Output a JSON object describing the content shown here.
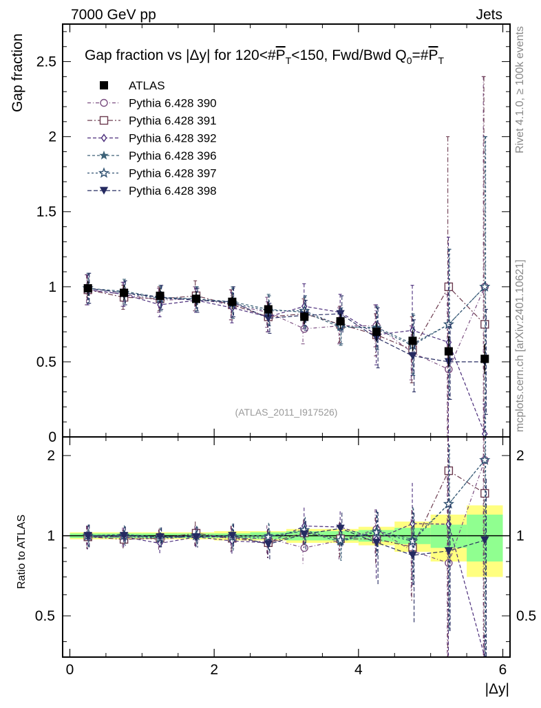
{
  "header": {
    "left": "7000 GeV pp",
    "right": "Jets"
  },
  "side": {
    "rivet": "Rivet 4.1.0, ≥ 100k events",
    "mcplots": "mcplots.cern.ch [arXiv:2401.10621]"
  },
  "colors": {
    "p390": "#7a4d80",
    "p391": "#6b3a4e",
    "p392": "#4a2c7a",
    "p396": "#3d6278",
    "p397": "#2e5070",
    "p398": "#252a60",
    "band_yellow": "#ffff80",
    "band_green": "#90ff90"
  },
  "chart_data": {
    "type": "scatter",
    "title": "Gap fraction vs |Δy| for 120<#P̅T<150, Fwd/Bwd Q0=#P̅T",
    "title_parts": {
      "pre": "Gap fraction vs |Δy| for 120<#",
      "pbar": "P",
      "t1": "T",
      "mid": "<150, Fwd/Bwd Q",
      "q0": "0",
      "eq": "=#",
      "pbar2": "P",
      "t2": "T"
    },
    "watermark": "(ATLAS_2011_I917526)",
    "xlabel": "|Δy|",
    "ylabel": "Gap fraction",
    "ratio_ylabel": "Ratio to ATLAS",
    "xlim": [
      -0.1,
      6.1
    ],
    "ylim": [
      0,
      2.75
    ],
    "ratio_ylim": [
      0.35,
      2.35
    ],
    "x_ticks": [
      "0",
      "2",
      "4",
      "6"
    ],
    "y_ticks": [
      "0.5",
      "1",
      "1.5",
      "2",
      "2.5"
    ],
    "y_tick_zero": "0",
    "ratio_ticks": [
      "0.5",
      "1",
      "2"
    ],
    "x": [
      0.25,
      0.75,
      1.25,
      1.75,
      2.25,
      2.75,
      3.25,
      3.75,
      4.25,
      4.75,
      5.25,
      5.75
    ],
    "data": {
      "name": "ATLAS",
      "values": [
        0.99,
        0.96,
        0.94,
        0.92,
        0.9,
        0.85,
        0.8,
        0.77,
        0.7,
        0.64,
        0.57,
        0.52
      ],
      "yerr": [
        0.05,
        0.05,
        0.05,
        0.05,
        0.05,
        0.05,
        0.05,
        0.05,
        0.06,
        0.07,
        0.1,
        0.1
      ]
    },
    "ratio_band": {
      "stat_rel": [
        0.02,
        0.02,
        0.02,
        0.02,
        0.02,
        0.03,
        0.04,
        0.04,
        0.05,
        0.07,
        0.1,
        0.2
      ],
      "total_rel": [
        0.03,
        0.03,
        0.03,
        0.03,
        0.04,
        0.04,
        0.06,
        0.06,
        0.08,
        0.13,
        0.2,
        0.3
      ]
    },
    "series": [
      {
        "name": "Pythia 6.428 390",
        "marker": "circle-open",
        "color": "#7a4d80",
        "dash": "5,3,1,3",
        "values": [
          0.98,
          0.95,
          0.91,
          0.92,
          0.88,
          0.83,
          0.72,
          0.74,
          0.74,
          0.56,
          0.45,
          1.0
        ],
        "yerr": [
          0.1,
          0.08,
          0.08,
          0.08,
          0.1,
          0.1,
          0.1,
          0.12,
          0.14,
          0.18,
          0.5,
          1.4
        ]
      },
      {
        "name": "Pythia 6.428 391",
        "marker": "square-open",
        "color": "#6b3a4e",
        "dash": "7,3,2,3",
        "values": [
          0.98,
          0.93,
          0.92,
          0.94,
          0.88,
          0.8,
          0.82,
          0.75,
          0.68,
          0.58,
          1.0,
          0.75
        ],
        "yerr": [
          0.1,
          0.08,
          0.08,
          0.1,
          0.1,
          0.1,
          0.1,
          0.12,
          0.14,
          0.22,
          1.0,
          1.65
        ]
      },
      {
        "name": "Pythia 6.428 392",
        "marker": "diamond-open",
        "color": "#4a2c7a",
        "dash": "5,3",
        "values": [
          0.98,
          0.95,
          0.88,
          0.91,
          0.86,
          0.8,
          0.87,
          0.83,
          0.68,
          0.71,
          0.63,
          0.02
        ],
        "yerr": [
          0.1,
          0.08,
          0.08,
          0.08,
          0.1,
          0.1,
          0.15,
          0.12,
          0.2,
          0.3,
          0.7,
          0.2
        ]
      },
      {
        "name": "Pythia 6.428 396",
        "marker": "star-filled",
        "color": "#3d6278",
        "dash": "4,3",
        "values": [
          0.99,
          0.97,
          0.93,
          0.92,
          0.9,
          0.85,
          0.83,
          0.73,
          0.73,
          0.62,
          0.75,
          1.0
        ],
        "yerr": [
          0.1,
          0.08,
          0.08,
          0.08,
          0.1,
          0.1,
          0.1,
          0.12,
          0.14,
          0.2,
          0.5,
          1.0
        ]
      },
      {
        "name": "Pythia 6.428 397",
        "marker": "star-open",
        "color": "#2e5070",
        "dash": "3,3",
        "values": [
          0.99,
          0.96,
          0.92,
          0.92,
          0.89,
          0.84,
          0.84,
          0.74,
          0.72,
          0.61,
          0.75,
          1.0
        ],
        "yerr": [
          0.1,
          0.08,
          0.08,
          0.08,
          0.1,
          0.1,
          0.1,
          0.12,
          0.14,
          0.2,
          0.5,
          1.0
        ]
      },
      {
        "name": "Pythia 6.428 398",
        "marker": "triangle-down-filled",
        "color": "#252a60",
        "dash": "6,3",
        "values": [
          0.99,
          0.96,
          0.93,
          0.91,
          0.9,
          0.79,
          0.81,
          0.82,
          0.66,
          0.54,
          0.5,
          0.5
        ],
        "yerr": [
          0.1,
          0.08,
          0.08,
          0.08,
          0.1,
          0.1,
          0.1,
          0.12,
          0.2,
          0.24,
          0.25,
          0.35
        ]
      }
    ]
  }
}
